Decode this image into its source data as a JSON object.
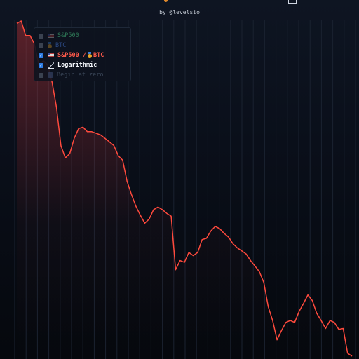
{
  "byline": "by @levelsio",
  "tabs": {
    "sp_color": "#2fa77a",
    "btc_color": "#3f6fc4",
    "ratio_color": "#cfd6e2"
  },
  "legend": {
    "items": [
      {
        "label": "S&P500",
        "checked": false,
        "icon": "us-flag-icon",
        "color": "#2f7a58"
      },
      {
        "label": "BTC",
        "checked": false,
        "icon": "gold-medal-icon",
        "color": "#2c4a86"
      },
      {
        "label": "S&P500 / ",
        "label_b": " BTC",
        "checked": true,
        "icon": "us-flag-icon",
        "icon_b": "gold-medal-icon",
        "color": "#ff5a4a"
      },
      {
        "label": "Logarithmic",
        "checked": true,
        "icon": "log-chart-icon",
        "color": "#f2f5fa"
      },
      {
        "label": "Begin at zero",
        "checked": false,
        "icon": "zero-icon",
        "color": "#3a4658"
      }
    ]
  },
  "chart_data": {
    "type": "line",
    "scale": "log",
    "grid": "vertical",
    "legend_position": "top-left",
    "series": [
      {
        "color": "#ff4a3d",
        "values": [
          100,
          103,
          85,
          85,
          76,
          58,
          61,
          58,
          46,
          33,
          20,
          17,
          18,
          22,
          25,
          25.5,
          24,
          24,
          23.5,
          23,
          22,
          21,
          20,
          17.5,
          16.5,
          12.5,
          10.5,
          9,
          8,
          7.2,
          7.6,
          8.6,
          8.9,
          8.6,
          8.2,
          7.9,
          3.9,
          4.4,
          4.3,
          4.9,
          4.7,
          4.9,
          5.8,
          5.9,
          6.5,
          6.9,
          6.7,
          6.3,
          6.0,
          5.5,
          5.2,
          5.0,
          4.8,
          4.4,
          4.1,
          3.8,
          3.3,
          2.4,
          2.0,
          1.55,
          1.75,
          1.95,
          2.0,
          1.95,
          2.25,
          2.5,
          2.8,
          2.6,
          2.2,
          2.0,
          1.8,
          2.0,
          1.95,
          1.78,
          1.8,
          1.3,
          1.25
        ]
      }
    ]
  }
}
